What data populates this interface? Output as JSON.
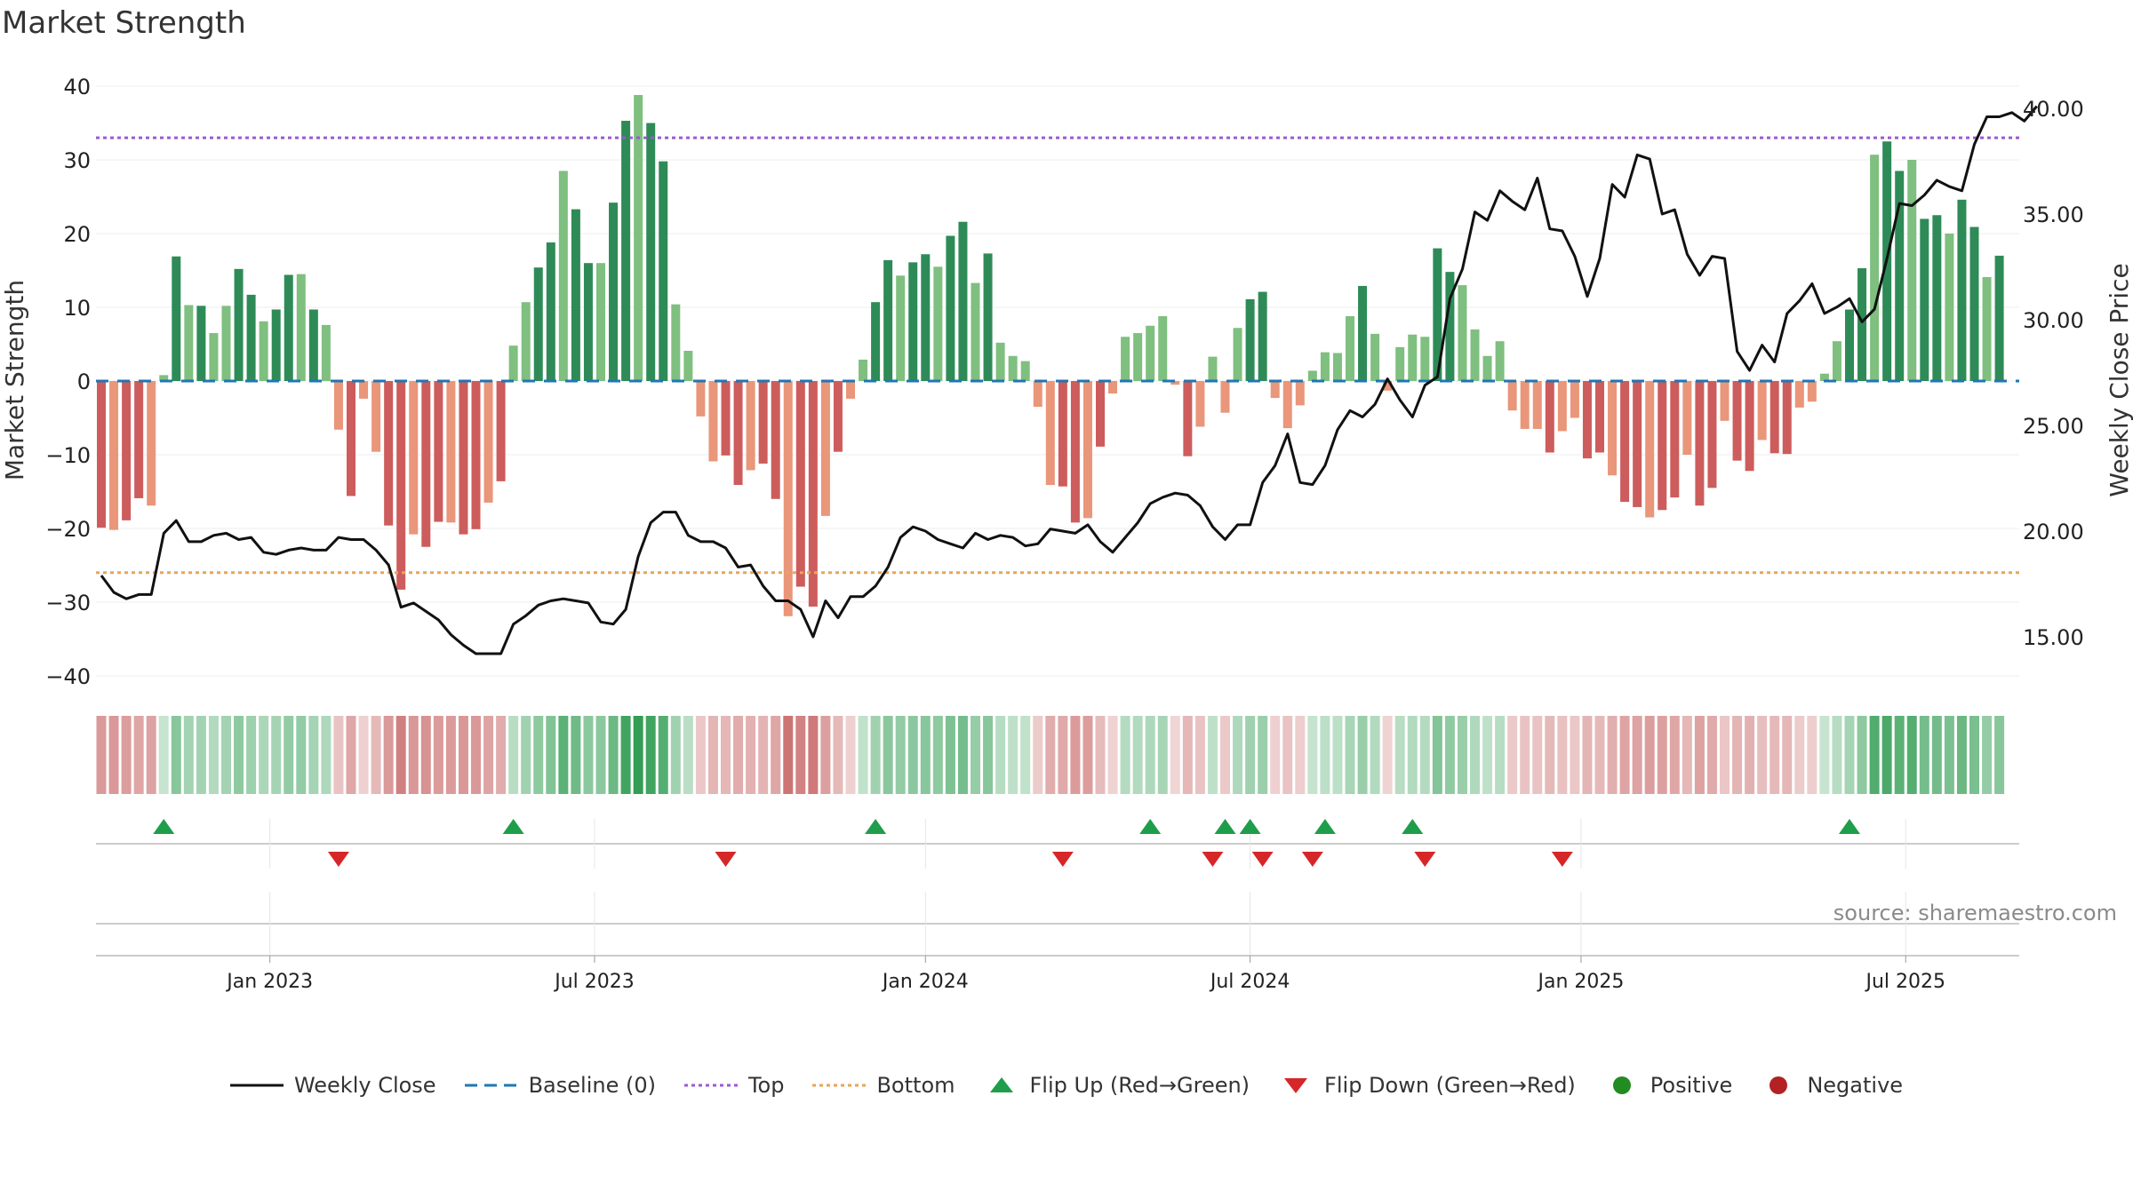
{
  "title": "Market Strength",
  "source": "source: sharemaestro.com",
  "chart_data": {
    "type": "bar",
    "title": "Market Strength",
    "ylabel_left": "Market Strength",
    "ylabel_right": "Weekly Close Price",
    "ylim_left": [
      -45,
      42
    ],
    "ylim_right": [
      11.2,
      41.0
    ],
    "yticks_left": [
      40,
      30,
      20,
      10,
      0,
      -10,
      -20,
      -30,
      -40
    ],
    "yticks_right": [
      "40.00",
      "35.00",
      "30.00",
      "25.00",
      "20.00",
      "15.00"
    ],
    "xticks": [
      "Jan 2023",
      "Jul 2023",
      "Jan 2024",
      "Jul 2024",
      "Jan 2025",
      "Jul 2025"
    ],
    "xtick_index": [
      13.5,
      39.5,
      66,
      92,
      118.5,
      144.5
    ],
    "top_line": 33,
    "bottom_line": -26,
    "baseline": 0,
    "strength": [
      -19.9,
      -20.2,
      -18.9,
      -15.9,
      -16.9,
      0.8,
      16.9,
      10.3,
      10.2,
      6.5,
      10.2,
      15.2,
      11.7,
      8.1,
      9.7,
      14.4,
      14.5,
      9.7,
      7.6,
      -6.6,
      -15.6,
      -2.4,
      -9.6,
      -19.6,
      -28.3,
      -20.8,
      -22.5,
      -19.1,
      -19.2,
      -20.8,
      -20.1,
      -16.5,
      -13.6,
      4.8,
      10.7,
      15.4,
      18.8,
      28.5,
      23.3,
      16.0,
      16.0,
      24.2,
      35.3,
      38.8,
      35.0,
      29.8,
      10.4,
      4.1,
      -4.8,
      -10.9,
      -10.1,
      -14.1,
      -12.1,
      -11.2,
      -16.0,
      -31.9,
      -27.9,
      -30.6,
      -18.3,
      -9.6,
      -2.4,
      2.9,
      10.7,
      16.4,
      14.3,
      16.1,
      17.2,
      15.5,
      19.7,
      21.6,
      13.3,
      17.3,
      5.2,
      3.4,
      2.7,
      -3.5,
      -14.1,
      -14.3,
      -19.2,
      -18.6,
      -8.9,
      -1.7,
      6.0,
      6.5,
      7.5,
      8.8,
      -0.5,
      -10.2,
      -6.2,
      3.3,
      -4.3,
      7.2,
      11.1,
      12.1,
      -2.3,
      -6.4,
      -3.3,
      1.4,
      3.9,
      3.8,
      8.8,
      12.9,
      6.4,
      -1.3,
      4.6,
      6.3,
      6.0,
      18.0,
      14.8,
      13.0,
      7.0,
      3.4,
      5.4,
      -4.0,
      -6.5,
      -6.5,
      -9.7,
      -6.8,
      -5.0,
      -10.5,
      -9.7,
      -12.8,
      -16.4,
      -17.1,
      -18.5,
      -17.5,
      -15.8,
      -10.0,
      -16.9,
      -14.5,
      -5.4,
      -10.8,
      -12.2,
      -8.0,
      -9.8,
      -9.9,
      -3.6,
      -2.8,
      1.0,
      5.4,
      9.7,
      15.3,
      30.7,
      32.5,
      28.5,
      30.0,
      22.0,
      22.5,
      20.0,
      24.6,
      20.9,
      14.1,
      17.0
    ],
    "weekly_close": [
      17.9,
      17.1,
      16.8,
      17.0,
      17.0,
      19.9,
      20.5,
      19.5,
      19.5,
      19.8,
      19.9,
      19.6,
      19.7,
      19.0,
      18.9,
      19.1,
      19.2,
      19.1,
      19.1,
      19.7,
      19.6,
      19.6,
      19.1,
      18.4,
      16.4,
      16.6,
      16.2,
      15.8,
      15.1,
      14.6,
      14.2,
      14.2,
      14.2,
      15.6,
      16.0,
      16.5,
      16.7,
      16.8,
      16.7,
      16.6,
      15.7,
      15.6,
      16.3,
      18.8,
      20.4,
      20.9,
      20.9,
      19.8,
      19.5,
      19.5,
      19.2,
      18.3,
      18.4,
      17.4,
      16.7,
      16.7,
      16.3,
      15.0,
      16.7,
      15.9,
      16.9,
      16.9,
      17.4,
      18.3,
      19.7,
      20.2,
      20.0,
      19.6,
      19.4,
      19.2,
      19.9,
      19.6,
      19.8,
      19.7,
      19.3,
      19.4,
      20.1,
      20.0,
      19.9,
      20.3,
      19.5,
      19.0,
      19.7,
      20.4,
      21.3,
      21.6,
      21.8,
      21.7,
      21.2,
      20.2,
      19.6,
      20.3,
      20.3,
      22.3,
      23.1,
      24.6,
      22.3,
      22.2,
      23.1,
      24.8,
      25.7,
      25.4,
      26.0,
      27.2,
      26.2,
      25.4,
      26.9,
      27.3,
      31.0,
      32.4,
      35.1,
      34.7,
      36.1,
      35.6,
      35.2,
      36.7,
      34.3,
      34.2,
      33.0,
      31.1,
      32.9,
      36.4,
      35.8,
      37.8,
      37.6,
      35.0,
      35.2,
      33.1,
      32.1,
      33.0,
      32.9,
      28.5,
      27.6,
      28.8,
      28.0,
      30.3,
      30.9,
      31.7,
      30.3,
      30.6,
      31.0,
      29.9,
      30.5,
      32.9,
      35.5,
      35.4,
      35.9,
      36.6,
      36.3,
      36.1,
      38.3,
      39.6,
      39.6,
      39.8,
      39.4,
      40.1
    ],
    "flip_up": [
      5,
      33,
      62,
      84,
      90,
      92,
      98,
      105,
      140
    ],
    "flip_down": [
      19,
      50,
      77,
      89,
      93,
      97,
      106,
      117
    ],
    "series_legend": [
      "Weekly Close",
      "Baseline (0)",
      "Top",
      "Bottom",
      "Flip Up (Red→Green)",
      "Flip Down (Green→Red)",
      "Positive",
      "Negative"
    ],
    "colors": {
      "pos_strong": "#2e8b57",
      "pos_weak": "#7fbf7f",
      "neg_strong": "#cd5c5c",
      "neg_weak": "#e9967a",
      "close": "#111111",
      "baseline": "#1f77b4",
      "top": "#9b59d6",
      "bottom": "#e8a55a",
      "flip_up": "#1e9e4a",
      "flip_down": "#d62728",
      "positive_dot": "#228b22",
      "negative_dot": "#b22222"
    }
  }
}
